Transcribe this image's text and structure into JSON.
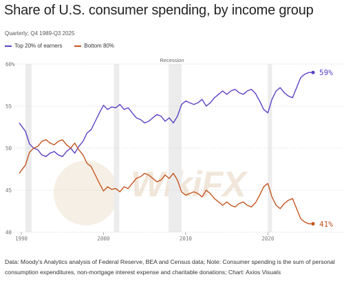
{
  "header": {
    "title": "Share of U.S. consumer spending, by income group",
    "subtitle": "Quarterly; Q4 1989-Q3 2025"
  },
  "legend": {
    "items": [
      {
        "label": "Top 20% of earners",
        "color": "#5b3fc4"
      },
      {
        "label": "Bottom 80%",
        "color": "#c4541e"
      }
    ]
  },
  "watermark": {
    "text": "WikiFX"
  },
  "footer": {
    "source": "Data: Moody's Analytics analysis of Federal Reserve, BEA and Census data; Note: Consumer spending is the sum of personal consumption expenditures, non-mortgage interest expense and charitable donations; Chart: Axios Visuals"
  },
  "chart_data": {
    "type": "line",
    "title": "Share of U.S. consumer spending, by income group",
    "subtitle": "Quarterly; Q4 1989-Q3 2025",
    "xlabel": "",
    "ylabel": "",
    "xlim": [
      1989.75,
      2025.75
    ],
    "ylim": [
      40,
      60
    ],
    "yticks": [
      40,
      45,
      50,
      55,
      60
    ],
    "ytick_labels": [
      "40",
      "45",
      "50",
      "55",
      "60%"
    ],
    "xticks": [
      1990,
      2000,
      2010,
      2020
    ],
    "xtick_labels": [
      "1990",
      "2000",
      "2010",
      "2020"
    ],
    "grid": "horizontal",
    "legend": "top-left",
    "recession_label": "Recession",
    "recessions": [
      [
        1990.5,
        1991.25
      ],
      [
        2001.25,
        2001.92
      ],
      [
        2007.92,
        2009.5
      ],
      [
        2020.0,
        2020.5
      ]
    ],
    "series": [
      {
        "name": "Top 20% of earners",
        "color": "#5b3fc4",
        "end_label": "59%",
        "x": [
          1989.75,
          1990.5,
          1991.0,
          1991.5,
          1992.0,
          1992.5,
          1993.0,
          1993.5,
          1994.0,
          1994.5,
          1995.0,
          1995.5,
          1996.0,
          1996.5,
          1997.0,
          1997.5,
          1998.0,
          1998.5,
          1999.0,
          1999.5,
          2000.0,
          2000.5,
          2001.0,
          2001.5,
          2002.0,
          2002.5,
          2003.0,
          2003.5,
          2004.0,
          2004.5,
          2005.0,
          2005.5,
          2006.0,
          2006.5,
          2007.0,
          2007.5,
          2008.0,
          2008.5,
          2009.0,
          2009.5,
          2010.0,
          2010.5,
          2011.0,
          2011.5,
          2012.0,
          2012.5,
          2013.0,
          2013.5,
          2014.0,
          2014.5,
          2015.0,
          2015.5,
          2016.0,
          2016.5,
          2017.0,
          2017.5,
          2018.0,
          2018.5,
          2019.0,
          2019.5,
          2020.0,
          2020.5,
          2021.0,
          2021.5,
          2022.0,
          2022.5,
          2023.0,
          2023.5,
          2024.0,
          2024.5,
          2025.0,
          2025.5
        ],
        "values": [
          53.0,
          52.0,
          50.5,
          50.0,
          49.8,
          49.2,
          49.0,
          49.4,
          49.6,
          49.2,
          49.0,
          49.6,
          50.0,
          49.4,
          50.2,
          50.8,
          51.8,
          52.2,
          53.2,
          54.2,
          55.1,
          54.6,
          54.9,
          54.8,
          55.2,
          54.6,
          54.8,
          54.2,
          53.6,
          53.4,
          53.0,
          53.2,
          53.6,
          54.0,
          53.8,
          53.2,
          53.6,
          53.0,
          53.8,
          55.2,
          55.6,
          55.4,
          55.2,
          55.4,
          55.8,
          55.0,
          55.4,
          56.0,
          56.4,
          56.8,
          56.4,
          56.8,
          57.0,
          56.6,
          56.4,
          56.8,
          57.0,
          56.5,
          55.6,
          54.6,
          54.2,
          55.8,
          56.8,
          57.2,
          56.6,
          56.2,
          56.0,
          57.2,
          58.4,
          58.8,
          59.0,
          59.0
        ]
      },
      {
        "name": "Bottom 80%",
        "color": "#c4541e",
        "end_label": "41%",
        "x": [
          1989.75,
          1990.5,
          1991.0,
          1991.5,
          1992.0,
          1992.5,
          1993.0,
          1993.5,
          1994.0,
          1994.5,
          1995.0,
          1995.5,
          1996.0,
          1996.5,
          1997.0,
          1997.5,
          1998.0,
          1998.5,
          1999.0,
          1999.5,
          2000.0,
          2000.5,
          2001.0,
          2001.5,
          2002.0,
          2002.5,
          2003.0,
          2003.5,
          2004.0,
          2004.5,
          2005.0,
          2005.5,
          2006.0,
          2006.5,
          2007.0,
          2007.5,
          2008.0,
          2008.5,
          2009.0,
          2009.5,
          2010.0,
          2010.5,
          2011.0,
          2011.5,
          2012.0,
          2012.5,
          2013.0,
          2013.5,
          2014.0,
          2014.5,
          2015.0,
          2015.5,
          2016.0,
          2016.5,
          2017.0,
          2017.5,
          2018.0,
          2018.5,
          2019.0,
          2019.5,
          2020.0,
          2020.5,
          2021.0,
          2021.5,
          2022.0,
          2022.5,
          2023.0,
          2023.5,
          2024.0,
          2024.5,
          2025.0,
          2025.5
        ],
        "values": [
          47.0,
          48.0,
          49.5,
          50.0,
          50.2,
          50.8,
          51.0,
          50.6,
          50.4,
          50.8,
          51.0,
          50.4,
          50.0,
          50.6,
          49.8,
          49.2,
          48.2,
          47.8,
          46.8,
          45.8,
          44.9,
          45.4,
          45.1,
          45.2,
          44.8,
          45.4,
          45.2,
          45.8,
          46.4,
          46.6,
          47.0,
          46.8,
          46.4,
          46.0,
          46.2,
          46.8,
          46.4,
          47.0,
          46.2,
          44.8,
          44.4,
          44.6,
          44.8,
          44.6,
          44.2,
          45.0,
          44.6,
          44.0,
          43.6,
          43.2,
          43.6,
          43.2,
          43.0,
          43.4,
          43.6,
          43.2,
          43.0,
          43.5,
          44.4,
          45.4,
          45.8,
          44.2,
          43.2,
          42.8,
          43.4,
          43.8,
          44.0,
          42.8,
          41.6,
          41.2,
          41.0,
          41.0
        ]
      }
    ]
  }
}
